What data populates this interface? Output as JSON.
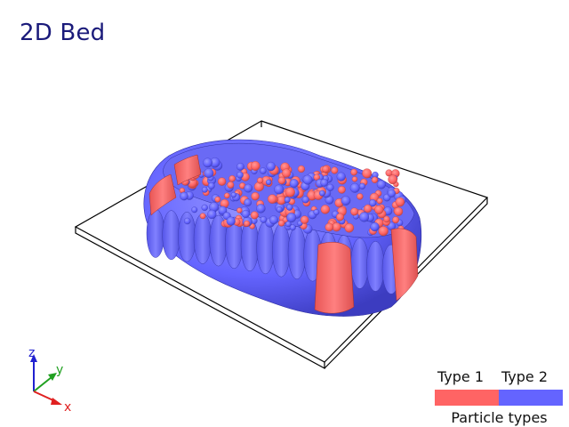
{
  "title": "2D Bed",
  "legend": {
    "title": "Particle types",
    "items": [
      {
        "label": "Type 1",
        "color": "#ff6464"
      },
      {
        "label": "Type 2",
        "color": "#6464ff"
      }
    ]
  },
  "axes": {
    "x": {
      "label": "x",
      "color": "#e02020"
    },
    "y": {
      "label": "y",
      "color": "#20a020"
    },
    "z": {
      "label": "z",
      "color": "#2020d0"
    }
  },
  "colors": {
    "type1": "#ff6464",
    "type2": "#6464ff",
    "box_outline": "#000000"
  }
}
